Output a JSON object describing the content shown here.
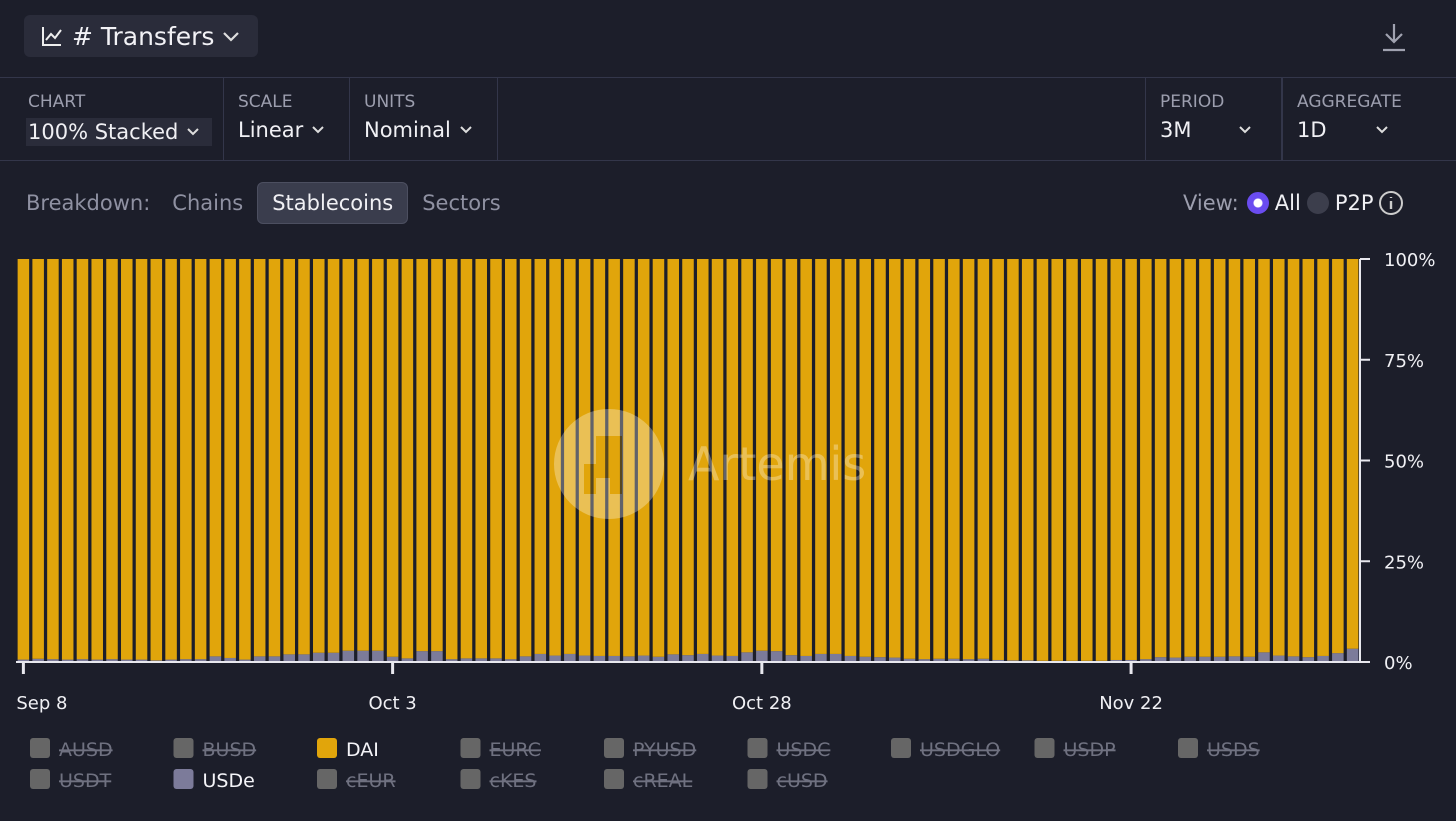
{
  "header": {
    "title": "# Transfers"
  },
  "controls": [
    {
      "label": "CHART",
      "value": "100% Stacked"
    },
    {
      "label": "SCALE",
      "value": "Linear"
    },
    {
      "label": "UNITS",
      "value": "Nominal"
    },
    {
      "label": "PERIOD",
      "value": "3M"
    },
    {
      "label": "AGGREGATE",
      "value": "1D"
    }
  ],
  "breakdown": {
    "label": "Breakdown:",
    "options": [
      "Chains",
      "Stablecoins",
      "Sectors"
    ],
    "active": 1
  },
  "view": {
    "label": "View:",
    "options": [
      "All",
      "P2P"
    ],
    "active": 0
  },
  "watermark": "Artemis",
  "chart_data": {
    "type": "stacked_bar",
    "categories": [
      "Sep 8",
      null,
      null,
      null,
      null,
      null,
      null,
      null,
      null,
      null,
      null,
      null,
      null,
      null,
      null,
      null,
      null,
      null,
      null,
      null,
      null,
      null,
      null,
      null,
      null,
      "Oct 3",
      null,
      null,
      null,
      null,
      null,
      null,
      null,
      null,
      null,
      null,
      null,
      null,
      null,
      null,
      null,
      null,
      null,
      null,
      null,
      null,
      null,
      null,
      null,
      null,
      "Oct 28",
      null,
      null,
      null,
      null,
      null,
      null,
      null,
      null,
      null,
      null,
      null,
      null,
      null,
      null,
      null,
      null,
      null,
      null,
      null,
      null,
      null,
      null,
      null,
      null,
      "Nov 22",
      null,
      null,
      null,
      null,
      null,
      null,
      null,
      null,
      null,
      null,
      null,
      null,
      null,
      null,
      null
    ],
    "series": [
      {
        "name": "USDe",
        "color": "#7c7b9a",
        "values": [
          0.6,
          0.8,
          0.7,
          0.6,
          0.7,
          0.6,
          0.7,
          0.6,
          0.6,
          0.4,
          0.6,
          0.7,
          0.7,
          1.4,
          1.0,
          0.6,
          1.4,
          1.4,
          1.9,
          1.9,
          2.3,
          2.3,
          2.8,
          2.8,
          2.8,
          1.3,
          0.9,
          2.7,
          2.7,
          0.7,
          0.9,
          0.9,
          0.9,
          0.7,
          1.4,
          2.0,
          1.6,
          2.0,
          1.6,
          1.5,
          1.5,
          1.4,
          1.6,
          1.3,
          1.9,
          1.7,
          2.0,
          1.6,
          1.5,
          2.4,
          2.8,
          2.7,
          1.7,
          1.5,
          2.0,
          2.0,
          1.5,
          1.3,
          1.2,
          1.1,
          0.8,
          0.7,
          0.8,
          0.8,
          0.7,
          0.8,
          0.5,
          0.4,
          0.4,
          0.3,
          0.3,
          0.3,
          0.3,
          0.3,
          0.5,
          0.5,
          0.7,
          1.2,
          1.1,
          1.3,
          1.3,
          1.3,
          1.4,
          1.3,
          2.4,
          1.6,
          1.4,
          1.2,
          1.5,
          2.2,
          3.3
        ]
      },
      {
        "name": "DAI",
        "color": "#e1a50b",
        "values": [
          99.4,
          99.2,
          99.3,
          99.4,
          99.3,
          99.4,
          99.3,
          99.4,
          99.4,
          99.6,
          99.4,
          99.3,
          99.3,
          98.6,
          99.0,
          99.4,
          98.6,
          98.6,
          98.1,
          98.1,
          97.7,
          97.7,
          97.2,
          97.2,
          97.2,
          98.7,
          99.1,
          97.3,
          97.3,
          99.3,
          99.1,
          99.1,
          99.1,
          99.3,
          98.6,
          98.0,
          98.4,
          98.0,
          98.4,
          98.5,
          98.5,
          98.6,
          98.4,
          98.7,
          98.1,
          98.3,
          98.0,
          98.4,
          98.5,
          97.6,
          97.2,
          97.3,
          98.3,
          98.5,
          98.0,
          98.0,
          98.5,
          98.7,
          98.8,
          98.9,
          99.2,
          99.3,
          99.2,
          99.2,
          99.3,
          99.2,
          99.5,
          99.6,
          99.6,
          99.7,
          99.7,
          99.7,
          99.7,
          99.7,
          99.5,
          99.5,
          99.3,
          98.8,
          98.9,
          98.7,
          98.7,
          98.7,
          98.6,
          98.7,
          97.6,
          98.4,
          98.6,
          98.8,
          98.5,
          97.8,
          96.7
        ]
      }
    ],
    "hidden_series": [
      "AUSD",
      "BUSD",
      "EURC",
      "PYUSD",
      "USDC",
      "USDGLO",
      "USDP",
      "USDS",
      "USDT",
      "cEUR",
      "cKES",
      "cREAL",
      "cUSD"
    ],
    "ylim": [
      0,
      100
    ],
    "yticks": [
      {
        "value": 0,
        "label": "0%"
      },
      {
        "value": 25,
        "label": "25%"
      },
      {
        "value": 50,
        "label": "50%"
      },
      {
        "value": 75,
        "label": "75%"
      },
      {
        "value": 100,
        "label": "100%"
      }
    ],
    "y_axis_side": "right"
  }
}
